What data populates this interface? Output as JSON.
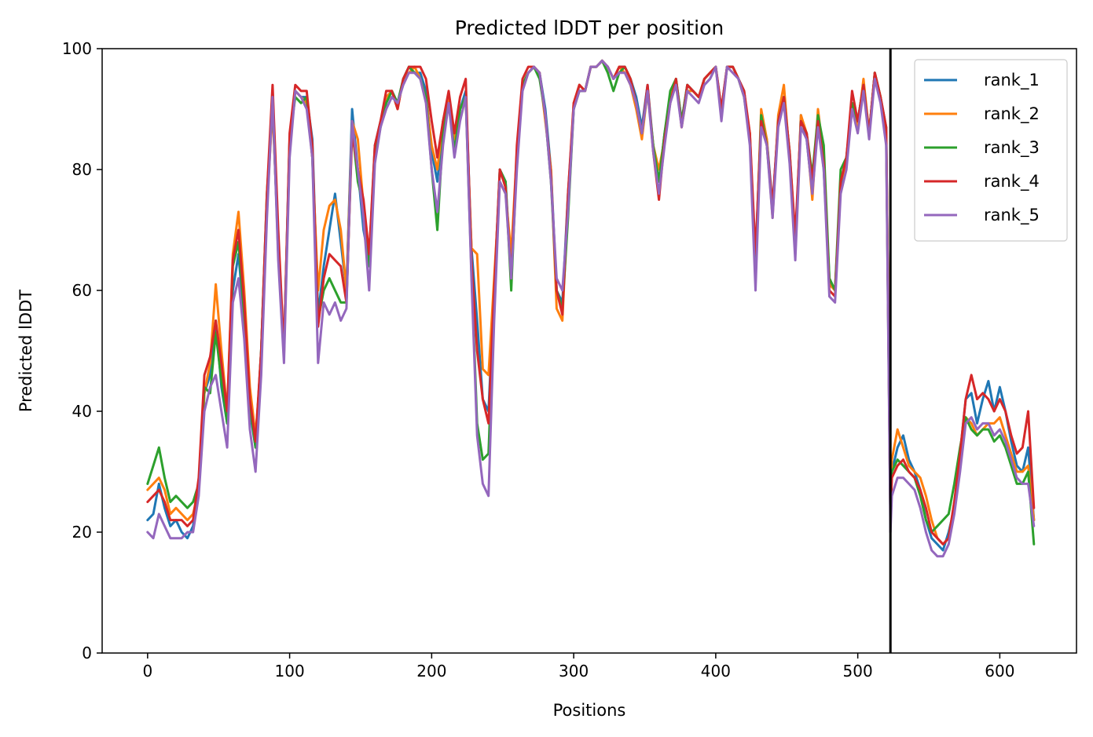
{
  "chart_data": {
    "type": "line",
    "title": "Predicted lDDT per position",
    "xlabel": "Positions",
    "ylabel": "Predicted lDDT",
    "xlim": [
      -32,
      654
    ],
    "ylim": [
      0,
      100
    ],
    "x_ticks": [
      0,
      100,
      200,
      300,
      400,
      500,
      600
    ],
    "y_ticks": [
      0,
      20,
      40,
      60,
      80,
      100
    ],
    "vline_x": 523,
    "grid": false,
    "legend_position": "top-right",
    "x": [
      0,
      4,
      8,
      12,
      16,
      20,
      24,
      28,
      32,
      36,
      40,
      44,
      48,
      52,
      56,
      60,
      64,
      68,
      72,
      76,
      80,
      84,
      88,
      92,
      96,
      100,
      104,
      108,
      112,
      116,
      120,
      124,
      128,
      132,
      136,
      140,
      144,
      148,
      152,
      156,
      160,
      164,
      168,
      172,
      176,
      180,
      184,
      188,
      192,
      196,
      200,
      204,
      208,
      212,
      216,
      220,
      224,
      228,
      232,
      236,
      240,
      244,
      248,
      252,
      256,
      260,
      264,
      268,
      272,
      276,
      280,
      284,
      288,
      292,
      296,
      300,
      304,
      308,
      312,
      316,
      320,
      324,
      328,
      332,
      336,
      340,
      344,
      348,
      352,
      356,
      360,
      364,
      368,
      372,
      376,
      380,
      384,
      388,
      392,
      396,
      400,
      404,
      408,
      412,
      416,
      420,
      424,
      428,
      432,
      436,
      440,
      444,
      448,
      452,
      456,
      460,
      464,
      468,
      472,
      476,
      480,
      484,
      488,
      492,
      496,
      500,
      504,
      508,
      512,
      516,
      520,
      523,
      524,
      528,
      532,
      536,
      540,
      544,
      548,
      552,
      556,
      560,
      564,
      568,
      572,
      576,
      580,
      584,
      588,
      592,
      596,
      600,
      604,
      608,
      612,
      616,
      620,
      624
    ],
    "series": [
      {
        "name": "rank_1",
        "color": "#1f77b4",
        "values": [
          22,
          23,
          28,
          24,
          21,
          22,
          20,
          19,
          21,
          27,
          43,
          46,
          55,
          44,
          38,
          60,
          66,
          55,
          40,
          34,
          50,
          75,
          92,
          66,
          50,
          85,
          93,
          92,
          92,
          85,
          56,
          64,
          70,
          76,
          68,
          60,
          90,
          80,
          70,
          65,
          84,
          88,
          91,
          93,
          91,
          95,
          97,
          96,
          96,
          93,
          83,
          78,
          88,
          92,
          83,
          90,
          93,
          67,
          55,
          42,
          40,
          60,
          80,
          78,
          62,
          82,
          94,
          96,
          97,
          96,
          90,
          80,
          60,
          58,
          76,
          90,
          94,
          93,
          97,
          97,
          98,
          97,
          95,
          97,
          97,
          95,
          92,
          87,
          94,
          84,
          78,
          86,
          92,
          95,
          88,
          94,
          93,
          92,
          94,
          95,
          97,
          90,
          97,
          97,
          95,
          93,
          85,
          62,
          88,
          85,
          74,
          88,
          92,
          82,
          66,
          89,
          85,
          76,
          89,
          80,
          62,
          60,
          77,
          82,
          91,
          88,
          94,
          86,
          96,
          92,
          87,
          24,
          30,
          34,
          36,
          32,
          30,
          27,
          22,
          19,
          18,
          17,
          20,
          24,
          33,
          42,
          43,
          38,
          42,
          45,
          40,
          44,
          40,
          35,
          31,
          30,
          34,
          22
        ]
      },
      {
        "name": "rank_2",
        "color": "#ff7f0e",
        "values": [
          27,
          28,
          29,
          27,
          23,
          24,
          23,
          22,
          23,
          27,
          43,
          48,
          61,
          50,
          40,
          66,
          73,
          60,
          44,
          36,
          48,
          74,
          90,
          68,
          49,
          84,
          93,
          92,
          91,
          82,
          60,
          70,
          74,
          75,
          70,
          60,
          88,
          85,
          74,
          66,
          82,
          88,
          92,
          93,
          90,
          95,
          96,
          97,
          95,
          92,
          84,
          80,
          88,
          92,
          85,
          90,
          92,
          67,
          66,
          47,
          46,
          62,
          78,
          76,
          66,
          83,
          94,
          96,
          97,
          96,
          88,
          80,
          57,
          55,
          75,
          91,
          94,
          93,
          97,
          97,
          98,
          97,
          95,
          97,
          96,
          94,
          90,
          85,
          93,
          84,
          80,
          85,
          92,
          95,
          87,
          93,
          93,
          92,
          95,
          96,
          97,
          89,
          97,
          97,
          95,
          92,
          86,
          64,
          90,
          85,
          72,
          89,
          94,
          82,
          67,
          89,
          86,
          75,
          90,
          82,
          61,
          60,
          78,
          81,
          90,
          87,
          95,
          86,
          96,
          92,
          86,
          25,
          32,
          37,
          34,
          31,
          30,
          29,
          26,
          22,
          19,
          18,
          19,
          25,
          31,
          39,
          38,
          36,
          37,
          38,
          38,
          39,
          36,
          33,
          30,
          30,
          31,
          22
        ]
      },
      {
        "name": "rank_3",
        "color": "#2ca02c",
        "values": [
          28,
          31,
          34,
          29,
          25,
          26,
          25,
          24,
          25,
          28,
          44,
          43,
          53,
          45,
          38,
          64,
          68,
          56,
          41,
          34,
          50,
          76,
          91,
          67,
          50,
          85,
          92,
          91,
          92,
          82,
          55,
          60,
          62,
          60,
          58,
          58,
          87,
          78,
          74,
          64,
          82,
          87,
          91,
          93,
          91,
          95,
          97,
          96,
          95,
          92,
          80,
          70,
          86,
          91,
          83,
          90,
          92,
          63,
          38,
          32,
          33,
          58,
          80,
          78,
          60,
          82,
          94,
          96,
          97,
          95,
          89,
          78,
          60,
          57,
          72,
          90,
          93,
          93,
          97,
          97,
          98,
          96,
          93,
          96,
          97,
          95,
          91,
          86,
          93,
          84,
          78,
          86,
          93,
          95,
          88,
          94,
          93,
          92,
          95,
          96,
          97,
          89,
          97,
          97,
          95,
          92,
          85,
          65,
          89,
          84,
          73,
          88,
          92,
          83,
          68,
          88,
          86,
          79,
          89,
          84,
          62,
          60,
          80,
          82,
          91,
          88,
          94,
          86,
          96,
          92,
          85,
          22,
          30,
          32,
          31,
          30,
          29,
          26,
          22,
          20,
          21,
          22,
          23,
          28,
          34,
          39,
          37,
          36,
          37,
          37,
          35,
          36,
          34,
          31,
          28,
          28,
          30,
          18
        ]
      },
      {
        "name": "rank_4",
        "color": "#d62728",
        "values": [
          25,
          26,
          27,
          25,
          22,
          22,
          22,
          21,
          22,
          29,
          46,
          49,
          55,
          48,
          40,
          65,
          70,
          58,
          42,
          35,
          50,
          76,
          94,
          70,
          50,
          86,
          94,
          93,
          93,
          84,
          54,
          62,
          66,
          65,
          64,
          58,
          86,
          80,
          75,
          66,
          84,
          88,
          93,
          93,
          90,
          95,
          97,
          97,
          97,
          95,
          88,
          82,
          88,
          93,
          86,
          92,
          95,
          65,
          50,
          42,
          38,
          60,
          80,
          77,
          62,
          84,
          95,
          97,
          97,
          96,
          89,
          79,
          60,
          56,
          76,
          91,
          94,
          93,
          97,
          97,
          98,
          97,
          95,
          97,
          97,
          95,
          91,
          86,
          94,
          83,
          75,
          85,
          91,
          95,
          87,
          94,
          93,
          92,
          95,
          96,
          97,
          90,
          97,
          97,
          95,
          93,
          86,
          66,
          88,
          84,
          74,
          88,
          92,
          83,
          69,
          88,
          86,
          78,
          88,
          81,
          60,
          59,
          78,
          82,
          93,
          88,
          94,
          86,
          96,
          92,
          87,
          22,
          29,
          31,
          32,
          30,
          29,
          27,
          24,
          20,
          19,
          18,
          19,
          25,
          33,
          42,
          46,
          42,
          43,
          42,
          40,
          42,
          40,
          36,
          33,
          34,
          40,
          24
        ]
      },
      {
        "name": "rank_5",
        "color": "#9467bd",
        "values": [
          20,
          19,
          23,
          21,
          19,
          19,
          19,
          20,
          20,
          26,
          40,
          44,
          46,
          40,
          34,
          58,
          62,
          52,
          37,
          30,
          46,
          72,
          92,
          65,
          48,
          82,
          93,
          92,
          90,
          82,
          48,
          58,
          56,
          58,
          55,
          57,
          88,
          80,
          72,
          60,
          81,
          87,
          90,
          92,
          91,
          94,
          96,
          96,
          95,
          91,
          80,
          73,
          84,
          91,
          82,
          88,
          92,
          62,
          36,
          28,
          26,
          55,
          78,
          76,
          62,
          80,
          93,
          96,
          97,
          96,
          89,
          78,
          62,
          60,
          73,
          90,
          93,
          93,
          97,
          97,
          98,
          97,
          95,
          96,
          96,
          94,
          91,
          86,
          93,
          83,
          76,
          84,
          91,
          94,
          87,
          93,
          92,
          91,
          94,
          95,
          97,
          88,
          97,
          96,
          95,
          92,
          84,
          60,
          87,
          84,
          72,
          87,
          91,
          81,
          65,
          87,
          85,
          76,
          87,
          80,
          59,
          58,
          76,
          80,
          90,
          86,
          93,
          85,
          95,
          91,
          84,
          20,
          26,
          29,
          29,
          28,
          27,
          24,
          20,
          17,
          16,
          16,
          18,
          23,
          30,
          38,
          39,
          37,
          38,
          38,
          36,
          37,
          35,
          32,
          29,
          28,
          28,
          21
        ]
      }
    ]
  }
}
